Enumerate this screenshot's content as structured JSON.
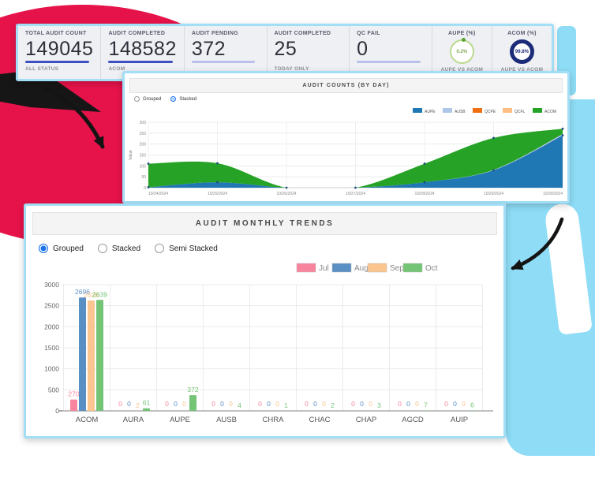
{
  "kpi": {
    "cards": [
      {
        "label": "TOTAL AUDIT COUNT",
        "value": "149045",
        "sub": "ALL STATUS",
        "underline": "#3c50c0"
      },
      {
        "label": "AUDIT COMPLETED",
        "value": "148582",
        "sub": "ACOM",
        "underline": "#3c50c0"
      },
      {
        "label": "AUDIT PENDING",
        "value": "372",
        "sub": "",
        "underline": "#b9c0ea"
      },
      {
        "label": "AUDIT COMPLETED",
        "value": "25",
        "sub": "TODAY ONLY",
        "underline": ""
      },
      {
        "label": "QC FAIL",
        "value": "0",
        "sub": "",
        "underline": "#b9c0ea"
      }
    ],
    "gauges": [
      {
        "label": "AUPE (%)",
        "value": "0.2%",
        "sub": "AUPE VS ACOM",
        "ring": "#bcd98f",
        "text": "#86a85a",
        "style": "thin-dot"
      },
      {
        "label": "ACOM (%)",
        "value": "99.8%",
        "sub": "AUPE VS ACOM",
        "ring": "#1c2b78",
        "text": "#1c2b78",
        "style": "thick"
      }
    ]
  },
  "chart_data": [
    {
      "type": "area",
      "title": "AUDIT COUNTS (BY DAY)",
      "stacked": true,
      "controls": [
        "Grouped",
        "Stacked"
      ],
      "selected_control": "Stacked",
      "ylabel": "Value",
      "ylim": [
        0,
        300
      ],
      "yticks": [
        0,
        50,
        100,
        150,
        200,
        250,
        300
      ],
      "x": [
        "10/24/2024",
        "10/25/2024",
        "10/26/2024",
        "10/27/2024",
        "10/28/2024",
        "10/29/2024",
        "10/30/2024"
      ],
      "series": [
        {
          "name": "AUPE",
          "color": "#1f77b4",
          "values": [
            2,
            25,
            0,
            0,
            25,
            80,
            240
          ]
        },
        {
          "name": "AUSB",
          "color": "#aec7e8",
          "values": [
            0,
            0,
            0,
            0,
            0,
            2,
            6
          ]
        },
        {
          "name": "QCPE",
          "color": "#f06f12",
          "values": [
            0,
            0,
            0,
            0,
            0,
            0,
            0
          ]
        },
        {
          "name": "QCFL",
          "color": "#fdbe85",
          "values": [
            0,
            0,
            0,
            0,
            0,
            0,
            0
          ]
        },
        {
          "name": "ACOM",
          "color": "#26a326",
          "values": [
            108,
            87,
            0,
            0,
            85,
            146,
            24
          ]
        }
      ]
    },
    {
      "type": "bar",
      "title": "AUDIT MONTHLY TRENDS",
      "controls": [
        "Grouped",
        "Stacked",
        "Semi Stacked"
      ],
      "selected_control": "Grouped",
      "ylim": [
        0,
        3000
      ],
      "yticks": [
        0,
        500,
        1000,
        1500,
        2000,
        2500,
        3000
      ],
      "categories": [
        "ACOM",
        "AURA",
        "AUPE",
        "AUSB",
        "CHRA",
        "CHAC",
        "CHAP",
        "AGCD",
        "AUIP"
      ],
      "series": [
        {
          "name": "Jul",
          "color": "#f8849e",
          "values": [
            270,
            0,
            0,
            0,
            0,
            0,
            0,
            0,
            0
          ]
        },
        {
          "name": "Aug",
          "color": "#5a8fc4",
          "values": [
            2696,
            0,
            0,
            0,
            0,
            0,
            0,
            0,
            0
          ]
        },
        {
          "name": "Sep",
          "color": "#fac58e",
          "values": [
            2626,
            2,
            0,
            0,
            0,
            0,
            0,
            0,
            0
          ]
        },
        {
          "name": "Oct",
          "color": "#74c476",
          "values": [
            2639,
            61,
            372,
            4,
            1,
            2,
            3,
            7,
            6
          ]
        }
      ]
    }
  ]
}
